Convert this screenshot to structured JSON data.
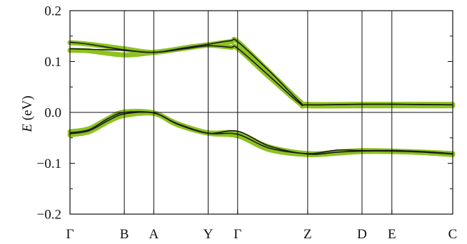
{
  "chart_data": {
    "type": "line",
    "ylabel_symbol": "E",
    "ylabel_unit": " (eV)",
    "ylim": [
      -0.2,
      0.2
    ],
    "yticks": [
      {
        "value": 0.2,
        "label": "0.2"
      },
      {
        "value": 0.1,
        "label": "0.1"
      },
      {
        "value": 0.0,
        "label": "0.0"
      },
      {
        "value": -0.1,
        "label": "−0.1"
      },
      {
        "value": -0.2,
        "label": "−0.2"
      }
    ],
    "kpoints": [
      {
        "label": "Γ",
        "pos": 0.0
      },
      {
        "label": "B",
        "pos": 0.142
      },
      {
        "label": "A",
        "pos": 0.219
      },
      {
        "label": "Y",
        "pos": 0.361
      },
      {
        "label": "Γ",
        "pos": 0.438
      },
      {
        "label": "Z",
        "pos": 0.621
      },
      {
        "label": "D",
        "pos": 0.763
      },
      {
        "label": "E",
        "pos": 0.841
      },
      {
        "label": "C",
        "pos": 1.0
      }
    ],
    "zero_line": 0.0,
    "grid": false,
    "colors": {
      "model": "#1a1a1a",
      "reference": "#8dc21f",
      "frame": "#111111"
    },
    "series": [
      {
        "style": "reference",
        "width": 7,
        "x": [
          0,
          0.05,
          0.142,
          0.219,
          0.3,
          0.361,
          0.42,
          0.438,
          0.52,
          0.6,
          0.621,
          0.763,
          0.841,
          1.0
        ],
        "y": [
          0.137,
          0.134,
          0.125,
          0.118,
          0.127,
          0.133,
          0.139,
          0.139,
          0.08,
          0.022,
          0.016,
          0.016,
          0.016,
          0.016
        ]
      },
      {
        "style": "reference",
        "width": 7,
        "x": [
          0,
          0.05,
          0.142,
          0.219,
          0.3,
          0.361,
          0.42,
          0.438,
          0.52,
          0.6,
          0.621,
          0.763,
          0.841,
          1.0
        ],
        "y": [
          0.122,
          0.121,
          0.113,
          0.118,
          0.126,
          0.132,
          0.128,
          0.126,
          0.07,
          0.018,
          0.013,
          0.013,
          0.013,
          0.013
        ]
      },
      {
        "style": "reference",
        "width": 7,
        "x": [
          0,
          0.05,
          0.1,
          0.142,
          0.219,
          0.28,
          0.361,
          0.438,
          0.52,
          0.621,
          0.7,
          0.763,
          0.841,
          0.92,
          1.0
        ],
        "y": [
          -0.038,
          -0.032,
          -0.012,
          0.001,
          -0.001,
          -0.022,
          -0.04,
          -0.041,
          -0.068,
          -0.081,
          -0.078,
          -0.075,
          -0.076,
          -0.078,
          -0.081
        ]
      },
      {
        "style": "reference",
        "width": 7,
        "x": [
          0,
          0.05,
          0.1,
          0.142,
          0.219,
          0.28,
          0.361,
          0.438,
          0.52,
          0.621,
          0.7,
          0.763,
          0.841,
          0.92,
          1.0
        ],
        "y": [
          -0.044,
          -0.038,
          -0.018,
          -0.006,
          -0.002,
          -0.024,
          -0.041,
          -0.046,
          -0.073,
          -0.083,
          -0.08,
          -0.077,
          -0.077,
          -0.079,
          -0.083
        ]
      },
      {
        "style": "model",
        "width": 1.6,
        "x": [
          0,
          0.05,
          0.142,
          0.219,
          0.3,
          0.361,
          0.42,
          0.438,
          0.52,
          0.6,
          0.621,
          0.763,
          0.841,
          1.0
        ],
        "y": [
          0.138,
          0.134,
          0.123,
          0.118,
          0.127,
          0.134,
          0.141,
          0.139,
          0.082,
          0.021,
          0.015,
          0.016,
          0.016,
          0.015
        ]
      },
      {
        "style": "model",
        "width": 1.6,
        "x": [
          0,
          0.05,
          0.142,
          0.219,
          0.3,
          0.361,
          0.42,
          0.438,
          0.52,
          0.6,
          0.621,
          0.763,
          0.841,
          1.0
        ],
        "y": [
          0.125,
          0.124,
          0.122,
          0.118,
          0.125,
          0.131,
          0.128,
          0.126,
          0.072,
          0.018,
          0.015,
          0.016,
          0.016,
          0.015
        ]
      },
      {
        "style": "model",
        "width": 1.6,
        "x": [
          0,
          0.05,
          0.1,
          0.142,
          0.219,
          0.28,
          0.361,
          0.438,
          0.52,
          0.621,
          0.7,
          0.763,
          0.841,
          0.92,
          1.0
        ],
        "y": [
          -0.04,
          -0.034,
          -0.012,
          0.0,
          -0.001,
          -0.022,
          -0.041,
          -0.043,
          -0.07,
          -0.081,
          -0.074,
          -0.075,
          -0.075,
          -0.077,
          -0.081
        ]
      },
      {
        "style": "model",
        "width": 1.6,
        "x": [
          0,
          0.05,
          0.1,
          0.142,
          0.219,
          0.28,
          0.361,
          0.438,
          0.52,
          0.621,
          0.7,
          0.763,
          0.841,
          0.92,
          1.0
        ],
        "y": [
          -0.042,
          -0.036,
          -0.016,
          -0.003,
          -0.001,
          -0.023,
          -0.041,
          -0.037,
          -0.066,
          -0.082,
          -0.078,
          -0.076,
          -0.076,
          -0.078,
          -0.082
        ]
      }
    ]
  }
}
